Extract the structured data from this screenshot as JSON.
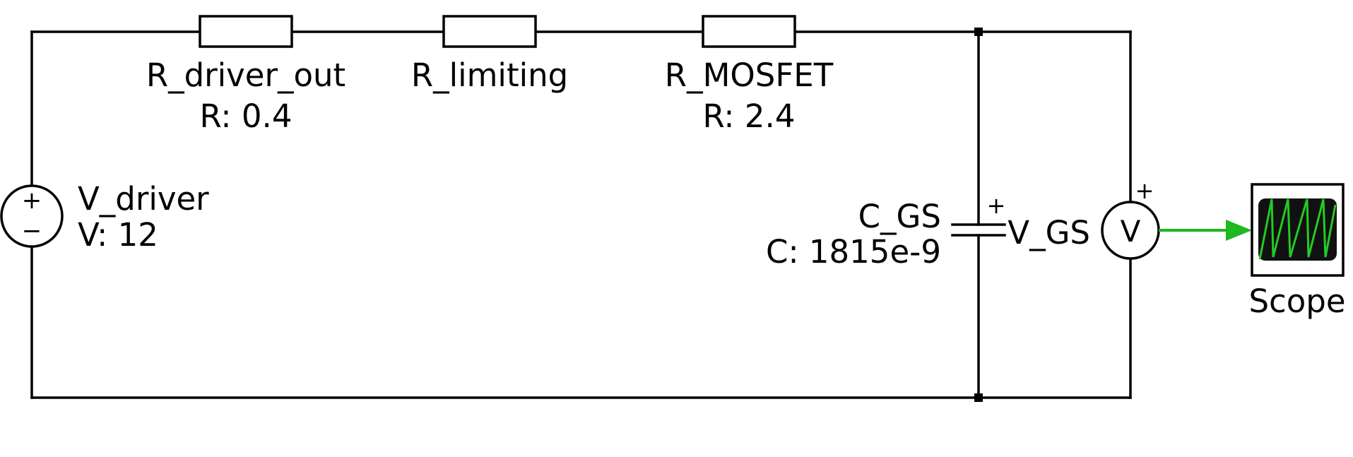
{
  "components": {
    "r_driver_out": {
      "name": "R_driver_out",
      "value": "R: 0.4"
    },
    "r_limiting": {
      "name": "R_limiting"
    },
    "r_mosfet": {
      "name": "R_MOSFET",
      "value": "R: 2.4"
    },
    "v_driver": {
      "name": "V_driver",
      "value": "V: 12",
      "plus": "+",
      "minus": "−"
    },
    "c_gs": {
      "name": "C_GS",
      "value": "C: 1815e-9",
      "polarity": "+"
    },
    "v_gs": {
      "name": "V_GS",
      "symbol": "V",
      "polarity": "+"
    },
    "scope": {
      "name": "Scope"
    }
  },
  "colors": {
    "wire": "#000000",
    "signal": "#1fb81f",
    "scope_screen": "#111111",
    "scope_trace": "#22cc22"
  },
  "icons": {
    "voltage_source": "dc-voltage-source-icon",
    "voltmeter": "voltmeter-icon",
    "scope": "oscilloscope-icon"
  }
}
